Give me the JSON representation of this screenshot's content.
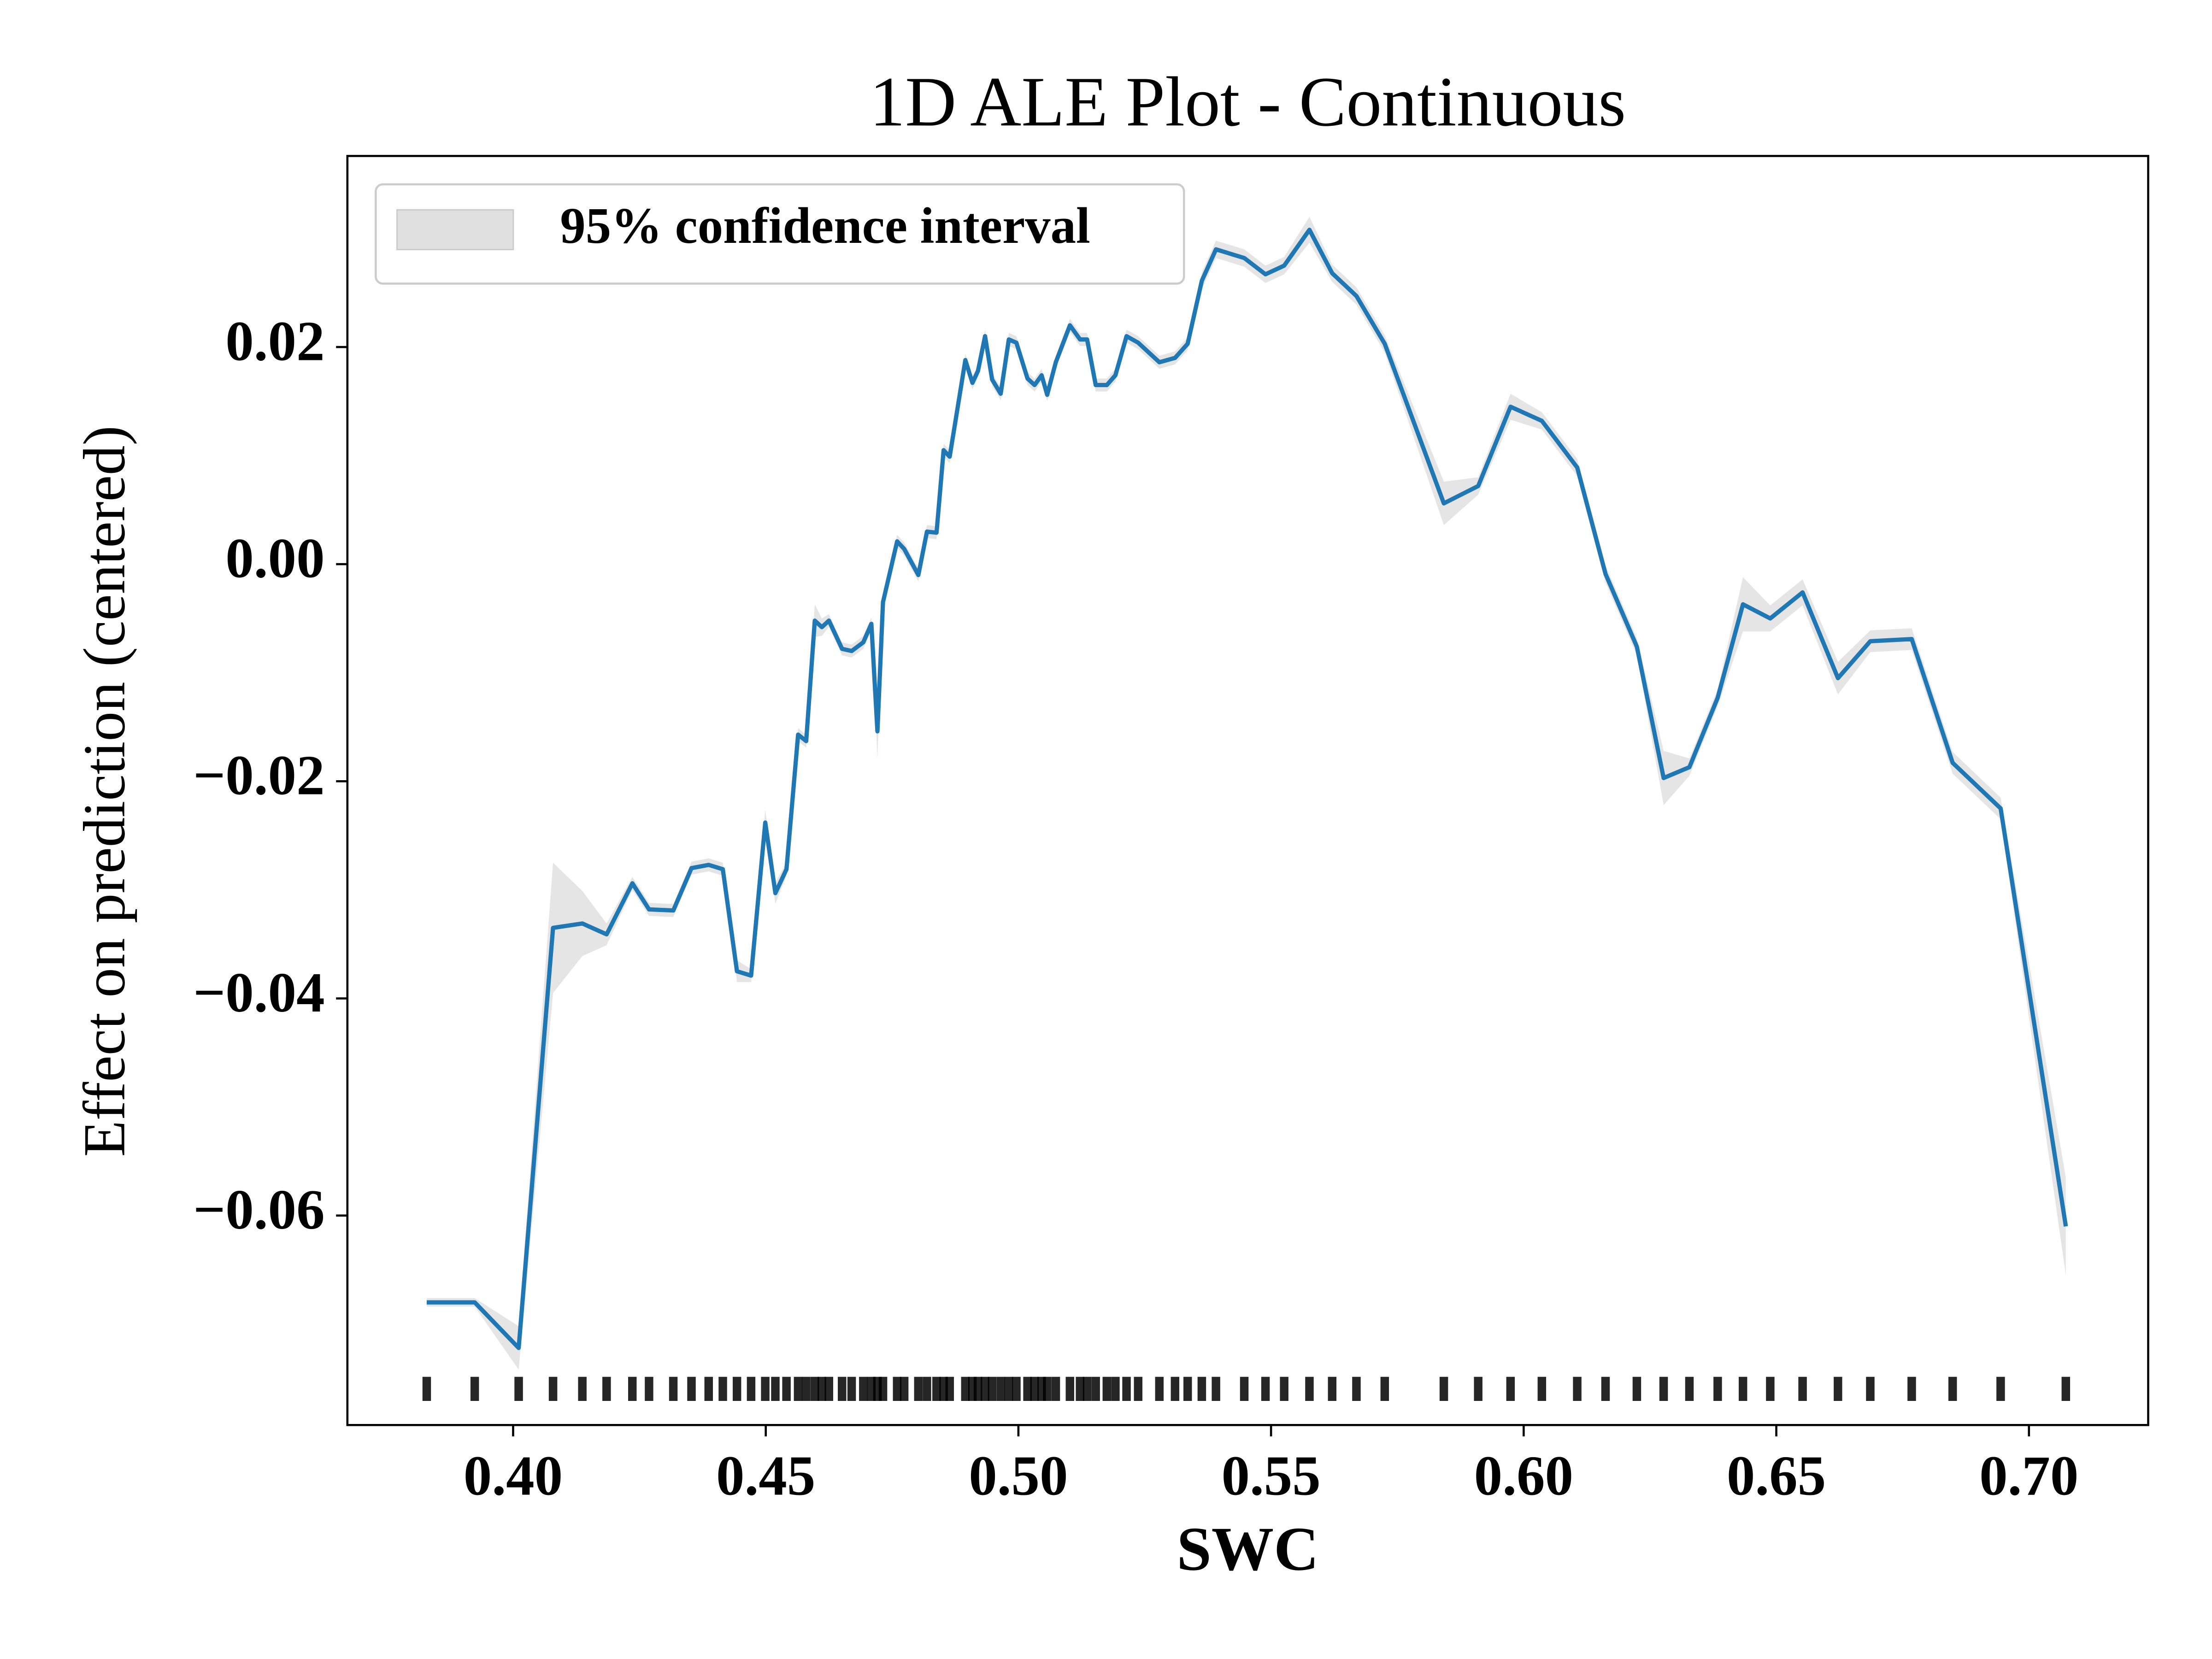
{
  "chart_data": {
    "type": "line",
    "title": "1D ALE Plot - Continuous",
    "xlabel": "SWC",
    "ylabel": "Effect on prediction (centered)",
    "xlim": [
      0.3672,
      0.7236
    ],
    "ylim": [
      -0.0793,
      0.0376
    ],
    "xticks": [
      {
        "value": 0.4,
        "label": "0.40"
      },
      {
        "value": 0.45,
        "label": "0.45"
      },
      {
        "value": 0.5,
        "label": "0.50"
      },
      {
        "value": 0.55,
        "label": "0.55"
      },
      {
        "value": 0.6,
        "label": "0.60"
      },
      {
        "value": 0.65,
        "label": "0.65"
      },
      {
        "value": 0.7,
        "label": "0.70"
      }
    ],
    "yticks": [
      {
        "value": -0.06,
        "label": "−0.06"
      },
      {
        "value": -0.04,
        "label": "−0.04"
      },
      {
        "value": -0.02,
        "label": "−0.02"
      },
      {
        "value": 0,
        "label": "0.00"
      },
      {
        "value": 0.02,
        "label": "0.02"
      }
    ],
    "legend": {
      "label": "95% confidence interval",
      "loc": "upper left",
      "color": "#e0e0e0"
    },
    "rug": true,
    "x": [
      0.3829,
      0.3924,
      0.4011,
      0.4079,
      0.4137,
      0.4185,
      0.4236,
      0.4269,
      0.4317,
      0.4353,
      0.4387,
      0.4415,
      0.4443,
      0.4471,
      0.4499,
      0.4519,
      0.4541,
      0.4564,
      0.458,
      0.4597,
      0.4611,
      0.4625,
      0.4651,
      0.467,
      0.4693,
      0.4709,
      0.4721,
      0.4732,
      0.476,
      0.4774,
      0.4802,
      0.4819,
      0.4838,
      0.4852,
      0.4864,
      0.4895,
      0.4909,
      0.492,
      0.4934,
      0.4948,
      0.4965,
      0.4981,
      0.4996,
      0.5018,
      0.5032,
      0.5046,
      0.5057,
      0.5074,
      0.5102,
      0.5122,
      0.5136,
      0.5153,
      0.5175,
      0.5192,
      0.5214,
      0.5237,
      0.5279,
      0.531,
      0.5335,
      0.5363,
      0.5391,
      0.5447,
      0.5489,
      0.5526,
      0.5576,
      0.5621,
      0.5669,
      0.5725,
      0.5842,
      0.591,
      0.5974,
      0.6036,
      0.6106,
      0.6162,
      0.6224,
      0.6277,
      0.6328,
      0.6384,
      0.6434,
      0.6488,
      0.6552,
      0.6622,
      0.6686,
      0.6768,
      0.6849,
      0.6944,
      0.7073
    ],
    "series": [
      {
        "color": "#1f77b4",
        "values": [
          -0.068,
          -0.068,
          -0.0722,
          -0.0335,
          -0.0331,
          -0.0341,
          -0.0294,
          -0.0318,
          -0.0319,
          -0.028,
          -0.0277,
          -0.0281,
          -0.0375,
          -0.0379,
          -0.0238,
          -0.0303,
          -0.0281,
          -0.0157,
          -0.0163,
          -0.0052,
          -0.0058,
          -0.0052,
          -0.0078,
          -0.008,
          -0.0072,
          -0.0055,
          -0.0154,
          -0.0035,
          0.0021,
          0.0014,
          -0.001,
          0.003,
          0.0029,
          0.0105,
          0.0099,
          0.0188,
          0.0167,
          0.0178,
          0.021,
          0.017,
          0.0157,
          0.0207,
          0.0204,
          0.0171,
          0.0165,
          0.0174,
          0.0156,
          0.0186,
          0.022,
          0.0207,
          0.0207,
          0.0165,
          0.0165,
          0.0174,
          0.021,
          0.0204,
          0.0186,
          0.019,
          0.0203,
          0.0261,
          0.029,
          0.0282,
          0.0267,
          0.0275,
          0.0308,
          0.0268,
          0.0247,
          0.0203,
          0.0056,
          0.0072,
          0.0145,
          0.0132,
          0.0089,
          -0.0009,
          -0.0076,
          -0.0197,
          -0.0187,
          -0.0123,
          -0.0037,
          -0.005,
          -0.0026,
          -0.0105,
          -0.0071,
          -0.0069,
          -0.0183,
          -0.0225,
          -0.061
        ],
        "errors": [
          0.0004,
          0.0004,
          0.002,
          0.006,
          0.003,
          0.001,
          0.0006,
          0.0006,
          0.0006,
          0.0006,
          0.0006,
          0.0006,
          0.001,
          0.0006,
          0.0012,
          0.001,
          0.0006,
          0.0006,
          0.0006,
          0.0015,
          0.0008,
          0.0006,
          0.0006,
          0.0006,
          0.0006,
          0.0006,
          0.0025,
          0.0008,
          0.0006,
          0.0006,
          0.0006,
          0.0006,
          0.0006,
          0.0006,
          0.0006,
          0.0006,
          0.0006,
          0.0006,
          0.0006,
          0.0006,
          0.0006,
          0.0006,
          0.0006,
          0.0006,
          0.0006,
          0.0006,
          0.0006,
          0.0006,
          0.0006,
          0.0006,
          0.0006,
          0.0006,
          0.0006,
          0.0006,
          0.0006,
          0.0006,
          0.0006,
          0.0006,
          0.0006,
          0.0008,
          0.0008,
          0.0008,
          0.0008,
          0.0008,
          0.0012,
          0.0008,
          0.0008,
          0.0008,
          0.002,
          0.0008,
          0.0012,
          0.0008,
          0.0008,
          0.0008,
          0.0008,
          0.0025,
          0.0008,
          0.0008,
          0.0025,
          0.0012,
          0.0012,
          0.0015,
          0.001,
          0.001,
          0.001,
          0.001,
          0.0045
        ]
      }
    ]
  }
}
